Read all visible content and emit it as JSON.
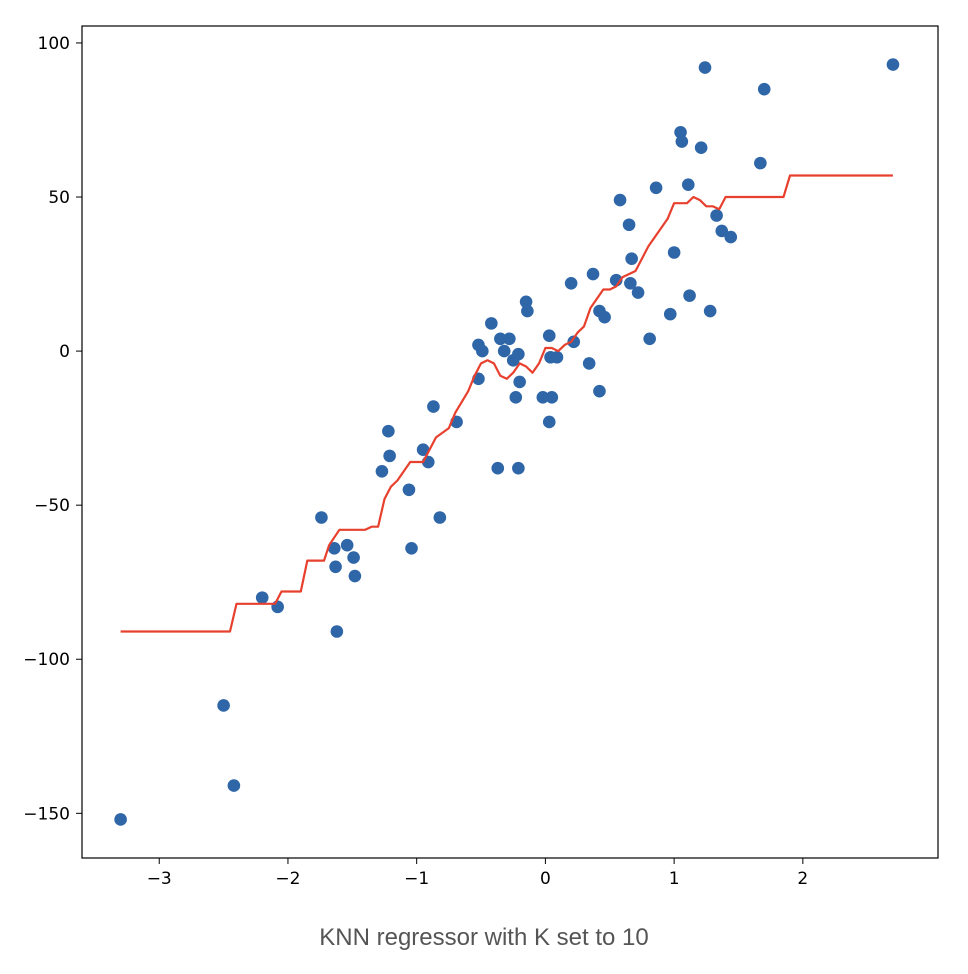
{
  "caption": "KNN regressor with K set to 10",
  "chart_data": {
    "type": "scatter",
    "title": "",
    "xlabel": "",
    "ylabel": "",
    "xlim": [
      -3.6,
      3.05
    ],
    "ylim": [
      -164.5,
      105.5
    ],
    "xticks": [
      -3,
      -2,
      -1,
      0,
      1,
      2
    ],
    "xtick_labels": [
      "−3",
      "−2",
      "−1",
      "0",
      "1",
      "2"
    ],
    "yticks": [
      100,
      50,
      0,
      -50,
      -100,
      -150
    ],
    "ytick_labels": [
      "100",
      "50",
      "0",
      "−50",
      "−100",
      "−150"
    ],
    "grid": false,
    "legend": "none",
    "series": [
      {
        "kind": "scatter",
        "color": "#2e66a8",
        "points": [
          [
            -3.3,
            -152
          ],
          [
            -2.5,
            -115
          ],
          [
            -2.42,
            -141
          ],
          [
            -2.2,
            -80
          ],
          [
            -2.08,
            -83
          ],
          [
            -1.74,
            -54
          ],
          [
            -1.64,
            -64
          ],
          [
            -1.63,
            -70
          ],
          [
            -1.62,
            -91
          ],
          [
            -1.54,
            -63
          ],
          [
            -1.49,
            -67
          ],
          [
            -1.48,
            -73
          ],
          [
            -1.27,
            -39
          ],
          [
            -1.22,
            -26
          ],
          [
            -1.21,
            -34
          ],
          [
            -1.06,
            -45
          ],
          [
            -1.04,
            -64
          ],
          [
            -0.95,
            -32
          ],
          [
            -0.91,
            -36
          ],
          [
            -0.87,
            -18
          ],
          [
            -0.82,
            -54
          ],
          [
            -0.69,
            -23
          ],
          [
            -0.52,
            2
          ],
          [
            -0.52,
            -9
          ],
          [
            -0.49,
            0
          ],
          [
            -0.42,
            9
          ],
          [
            -0.37,
            -38
          ],
          [
            -0.35,
            4
          ],
          [
            -0.32,
            0
          ],
          [
            -0.28,
            4
          ],
          [
            -0.25,
            -3
          ],
          [
            -0.23,
            -15
          ],
          [
            -0.21,
            -1
          ],
          [
            -0.21,
            -38
          ],
          [
            -0.2,
            -10
          ],
          [
            -0.15,
            16
          ],
          [
            -0.14,
            13
          ],
          [
            -0.02,
            -15
          ],
          [
            0.03,
            5
          ],
          [
            0.03,
            -23
          ],
          [
            0.04,
            -2
          ],
          [
            0.05,
            -15
          ],
          [
            0.09,
            -2
          ],
          [
            0.2,
            22
          ],
          [
            0.22,
            3
          ],
          [
            0.34,
            -4
          ],
          [
            0.37,
            25
          ],
          [
            0.42,
            -13
          ],
          [
            0.42,
            13
          ],
          [
            0.46,
            11
          ],
          [
            0.55,
            23
          ],
          [
            0.58,
            49
          ],
          [
            0.65,
            41
          ],
          [
            0.66,
            22
          ],
          [
            0.67,
            30
          ],
          [
            0.72,
            19
          ],
          [
            0.81,
            4
          ],
          [
            0.86,
            53
          ],
          [
            0.97,
            12
          ],
          [
            1.0,
            32
          ],
          [
            1.05,
            71
          ],
          [
            1.06,
            68
          ],
          [
            1.11,
            54
          ],
          [
            1.12,
            18
          ],
          [
            1.21,
            66
          ],
          [
            1.24,
            92
          ],
          [
            1.28,
            13
          ],
          [
            1.33,
            44
          ],
          [
            1.37,
            39
          ],
          [
            1.44,
            37
          ],
          [
            1.67,
            61
          ],
          [
            1.7,
            85
          ],
          [
            2.7,
            93
          ]
        ]
      },
      {
        "kind": "line",
        "color": "#e8402e",
        "points": [
          [
            -3.3,
            -91
          ],
          [
            -2.45,
            -91
          ],
          [
            -2.4,
            -82
          ],
          [
            -2.1,
            -82
          ],
          [
            -2.05,
            -78
          ],
          [
            -1.9,
            -78
          ],
          [
            -1.85,
            -68
          ],
          [
            -1.72,
            -68
          ],
          [
            -1.68,
            -63
          ],
          [
            -1.6,
            -58
          ],
          [
            -1.4,
            -58
          ],
          [
            -1.35,
            -57
          ],
          [
            -1.3,
            -57
          ],
          [
            -1.25,
            -48
          ],
          [
            -1.2,
            -44
          ],
          [
            -1.15,
            -42
          ],
          [
            -1.05,
            -36
          ],
          [
            -0.95,
            -36
          ],
          [
            -0.85,
            -28
          ],
          [
            -0.75,
            -25
          ],
          [
            -0.7,
            -20
          ],
          [
            -0.6,
            -13
          ],
          [
            -0.55,
            -8
          ],
          [
            -0.5,
            -4
          ],
          [
            -0.45,
            -3
          ],
          [
            -0.4,
            -4
          ],
          [
            -0.35,
            -8
          ],
          [
            -0.3,
            -9
          ],
          [
            -0.25,
            -7
          ],
          [
            -0.2,
            -4
          ],
          [
            -0.15,
            -5
          ],
          [
            -0.1,
            -7
          ],
          [
            -0.05,
            -4
          ],
          [
            0.0,
            1
          ],
          [
            0.05,
            1
          ],
          [
            0.1,
            0
          ],
          [
            0.15,
            2
          ],
          [
            0.2,
            3
          ],
          [
            0.25,
            6
          ],
          [
            0.3,
            8
          ],
          [
            0.35,
            14
          ],
          [
            0.4,
            17
          ],
          [
            0.45,
            20
          ],
          [
            0.5,
            20
          ],
          [
            0.55,
            21
          ],
          [
            0.6,
            24
          ],
          [
            0.7,
            26
          ],
          [
            0.75,
            30
          ],
          [
            0.8,
            34
          ],
          [
            0.85,
            37
          ],
          [
            0.95,
            43
          ],
          [
            1.0,
            48
          ],
          [
            1.05,
            48
          ],
          [
            1.1,
            48
          ],
          [
            1.15,
            50
          ],
          [
            1.2,
            49
          ],
          [
            1.25,
            47
          ],
          [
            1.3,
            47
          ],
          [
            1.35,
            46
          ],
          [
            1.4,
            50
          ],
          [
            1.6,
            50
          ],
          [
            1.85,
            50
          ],
          [
            1.9,
            57
          ],
          [
            2.7,
            57
          ]
        ]
      }
    ]
  }
}
